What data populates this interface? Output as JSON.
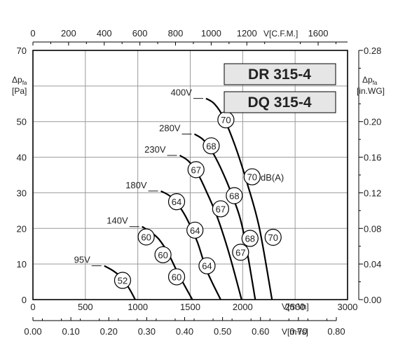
{
  "chart_data": {
    "type": "line",
    "models": [
      "DR 315-4",
      "DQ 315-4"
    ],
    "axes": {
      "bottom": {
        "label": "V[m³/h]",
        "ticks": [
          "0",
          "500",
          "1000",
          "1500",
          "2000",
          "2500",
          "3000"
        ],
        "range": [
          0,
          3000
        ]
      },
      "bottom2": {
        "label": "V[m³/s]",
        "ticks": [
          "0.00",
          "0.10",
          "0.20",
          "0.30",
          "0.40",
          "0.50",
          "0.60",
          "0.70",
          "0.80"
        ],
        "range": [
          0,
          0.8
        ]
      },
      "top": {
        "label": "V[C.F.M.]",
        "ticks": [
          "0",
          "200",
          "400",
          "600",
          "800",
          "1000",
          "1200",
          "1600"
        ],
        "tick_values": [
          0,
          200,
          400,
          600,
          800,
          1000,
          1200,
          1600
        ],
        "range": [
          0,
          1765
        ]
      },
      "left": {
        "label": "Δp",
        "subscript": "fa",
        "unit": "[Pa]",
        "ticks": [
          "0",
          "10",
          "20",
          "30",
          "40",
          "50",
          "70"
        ],
        "tick_values": [
          0,
          10,
          20,
          30,
          40,
          50,
          70
        ],
        "range": [
          0,
          70
        ]
      },
      "right": {
        "label": "Δp",
        "subscript": "fa",
        "unit": "[in.WG]",
        "ticks": [
          "0.00",
          "0.04",
          "0.08",
          "0.12",
          "0.16",
          "0.20",
          "0.28"
        ],
        "range": [
          0,
          0.28
        ]
      }
    },
    "grid": true,
    "series": [
      {
        "name": "95V",
        "points": [
          [
            680,
            9.5
          ],
          [
            770,
            8
          ],
          [
            850,
            6
          ],
          [
            920,
            3
          ],
          [
            975,
            0
          ]
        ],
        "markers": [
          {
            "x": 855,
            "y": 5.4,
            "label": "52"
          }
        ]
      },
      {
        "name": "140V",
        "points": [
          [
            1040,
            20.5
          ],
          [
            1120,
            19
          ],
          [
            1200,
            17
          ],
          [
            1290,
            13
          ],
          [
            1390,
            7
          ],
          [
            1520,
            0
          ]
        ],
        "markers": [
          {
            "x": 1080,
            "y": 17.6,
            "label": "60"
          },
          {
            "x": 1240,
            "y": 12.6,
            "label": "60"
          },
          {
            "x": 1370,
            "y": 6.4,
            "label": "60"
          }
        ]
      },
      {
        "name": "180V",
        "points": [
          [
            1220,
            30.5
          ],
          [
            1310,
            29
          ],
          [
            1400,
            26
          ],
          [
            1480,
            22
          ],
          [
            1570,
            16
          ],
          [
            1660,
            8
          ],
          [
            1790,
            0
          ]
        ],
        "markers": [
          {
            "x": 1370,
            "y": 27.5,
            "label": "64"
          },
          {
            "x": 1545,
            "y": 19.5,
            "label": "64"
          },
          {
            "x": 1660,
            "y": 9.5,
            "label": "64"
          }
        ]
      },
      {
        "name": "230V",
        "points": [
          [
            1400,
            40.5
          ],
          [
            1480,
            39
          ],
          [
            1560,
            36
          ],
          [
            1660,
            30
          ],
          [
            1760,
            23
          ],
          [
            1870,
            13
          ],
          [
            1990,
            0
          ]
        ],
        "markers": [
          {
            "x": 1555,
            "y": 36.5,
            "label": "67"
          },
          {
            "x": 1790,
            "y": 25.5,
            "label": "67"
          },
          {
            "x": 1980,
            "y": 13.3,
            "label": "67"
          }
        ]
      },
      {
        "name": "280V",
        "points": [
          [
            1540,
            46.5
          ],
          [
            1620,
            45
          ],
          [
            1700,
            42
          ],
          [
            1790,
            37
          ],
          [
            1890,
            30
          ],
          [
            2000,
            20
          ],
          [
            2120,
            0
          ]
        ],
        "markers": [
          {
            "x": 1700,
            "y": 43.2,
            "label": "68"
          },
          {
            "x": 1920,
            "y": 29.2,
            "label": "68"
          },
          {
            "x": 2070,
            "y": 17.2,
            "label": "68"
          }
        ]
      },
      {
        "name": "400V",
        "points": [
          [
            1650,
            56.5
          ],
          [
            1730,
            55
          ],
          [
            1820,
            51
          ],
          [
            1930,
            43
          ],
          [
            2050,
            32
          ],
          [
            2160,
            20
          ],
          [
            2280,
            0
          ]
        ],
        "markers": [
          {
            "x": 1840,
            "y": 50.5,
            "label": "70"
          },
          {
            "x": 2090,
            "y": 34.5,
            "label": "70"
          },
          {
            "x": 2290,
            "y": 17.5,
            "label": "70"
          }
        ]
      }
    ],
    "annotations": {
      "db_unit": "dB(A)"
    }
  }
}
